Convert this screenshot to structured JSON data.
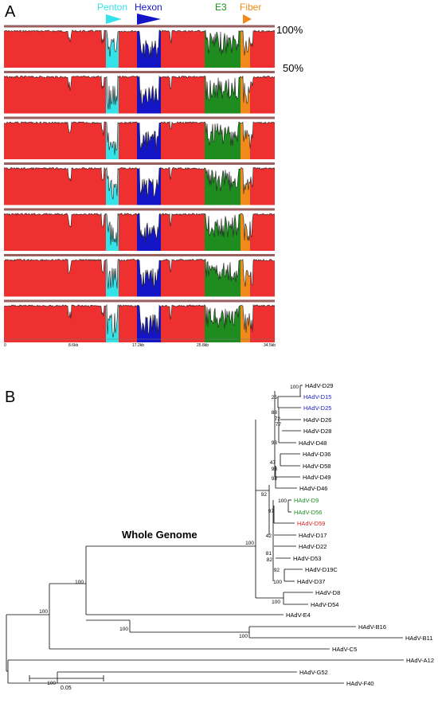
{
  "panel_a": {
    "label": "A",
    "genes": [
      {
        "name": "Penton",
        "color": "#33e3e8"
      },
      {
        "name": "Hexon",
        "color": "#1515c8"
      },
      {
        "name": "E3",
        "color": "#1f8c1f"
      },
      {
        "name": "Fiber",
        "color": "#f08a1a"
      }
    ],
    "background_color": "#ef3030",
    "scale_labels": [
      "100%",
      "50%"
    ],
    "axis_ticks": [
      "0",
      "8.6kb",
      "17.2kb",
      "25.8kb",
      "34.5kb"
    ],
    "track_count": 7
  },
  "panel_b": {
    "label": "B",
    "title": "Whole Genome",
    "scale_label": "0.05",
    "taxa": [
      {
        "name": "HAdV-D29",
        "color": "#000000"
      },
      {
        "name": "HAdV-D15",
        "color": "#2222cc"
      },
      {
        "name": "HAdV-D25",
        "color": "#2222cc"
      },
      {
        "name": "HAdV-D26",
        "color": "#000000"
      },
      {
        "name": "HAdV-D28",
        "color": "#000000"
      },
      {
        "name": "HAdV-D48",
        "color": "#000000"
      },
      {
        "name": "HAdV-D36",
        "color": "#000000"
      },
      {
        "name": "HAdV-D58",
        "color": "#000000"
      },
      {
        "name": "HAdV-D49",
        "color": "#000000"
      },
      {
        "name": "HAdV-D46",
        "color": "#000000"
      },
      {
        "name": "HAdV-D9",
        "color": "#1f8c1f"
      },
      {
        "name": "HAdV-D56",
        "color": "#1f8c1f"
      },
      {
        "name": "HAdV-D59",
        "color": "#e02020"
      },
      {
        "name": "HAdV-D17",
        "color": "#000000"
      },
      {
        "name": "HAdV-D22",
        "color": "#000000"
      },
      {
        "name": "HAdV-D53",
        "color": "#000000"
      },
      {
        "name": "HAdV-D19C",
        "color": "#000000"
      },
      {
        "name": "HAdV-D37",
        "color": "#000000"
      },
      {
        "name": "HAdV-D8",
        "color": "#000000"
      },
      {
        "name": "HAdV-D54",
        "color": "#000000"
      },
      {
        "name": "HAdV-E4",
        "color": "#000000"
      },
      {
        "name": "HAdV-B16",
        "color": "#000000"
      },
      {
        "name": "HAdV-B11",
        "color": "#000000"
      },
      {
        "name": "HAdV-C5",
        "color": "#000000"
      },
      {
        "name": "HAdV-A12",
        "color": "#000000"
      },
      {
        "name": "HAdV-G52",
        "color": "#000000"
      },
      {
        "name": "HAdV-F40",
        "color": "#000000"
      }
    ],
    "bootstrap": [
      "100",
      "25",
      "88",
      "72",
      "77",
      "93",
      "47",
      "98",
      "98",
      "92",
      "100",
      "97",
      "100",
      "42",
      "81",
      "82",
      "92",
      "100",
      "100",
      "100",
      "100",
      "100",
      "100",
      "100"
    ]
  }
}
